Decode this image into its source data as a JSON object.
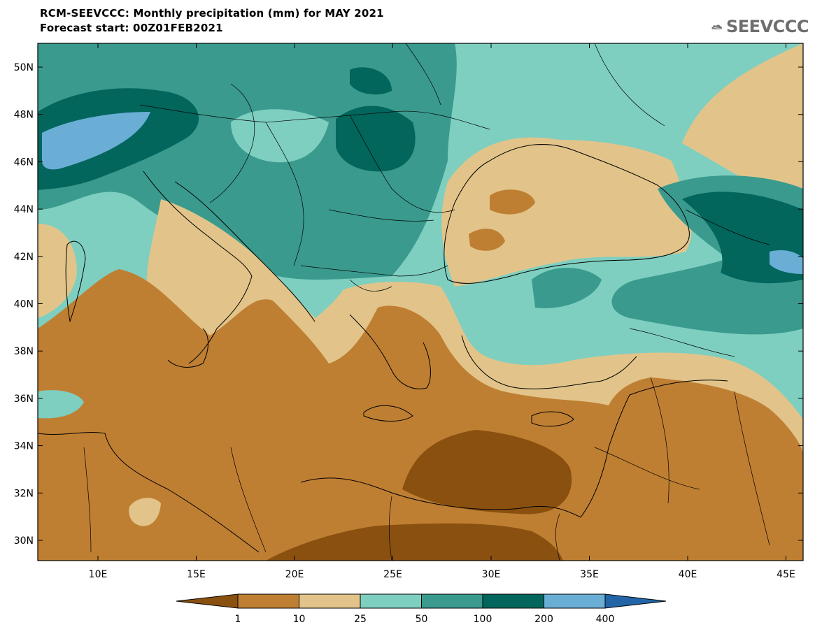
{
  "title_line1": "RCM-SEEVCCC: Monthly precipitation (mm) for MAY 2021",
  "title_line2": "Forecast start: 00Z01FEB2021",
  "logo_text": "SEEVCCC",
  "lat_ticks": [
    "50N",
    "48N",
    "46N",
    "44N",
    "42N",
    "40N",
    "38N",
    "36N",
    "34N",
    "32N",
    "30N"
  ],
  "lon_ticks": [
    "10E",
    "15E",
    "20E",
    "25E",
    "30E",
    "35E",
    "40E",
    "45E"
  ],
  "legend": {
    "thresholds": [
      "1",
      "10",
      "25",
      "50",
      "100",
      "200",
      "400"
    ],
    "colors": [
      "#8a5010",
      "#bf7f32",
      "#e2c48a",
      "#7ecfc0",
      "#3a9a8e",
      "#02665c",
      "#6aaed6",
      "#2266a8"
    ]
  }
}
